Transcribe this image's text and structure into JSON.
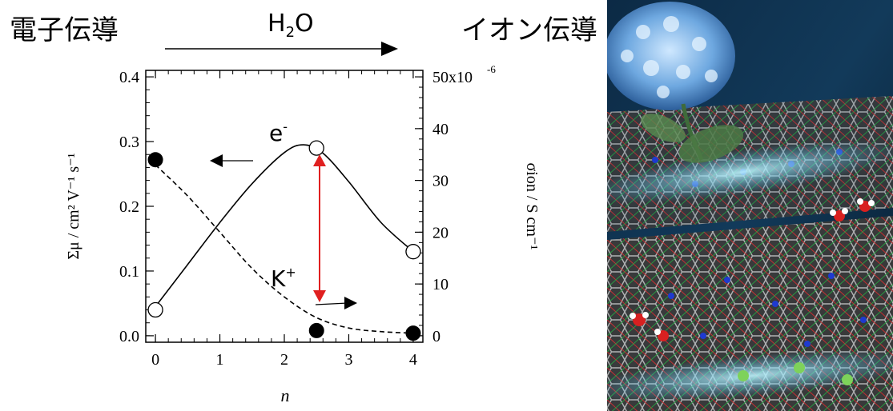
{
  "header": {
    "left": "電子伝導",
    "middle_base": "H",
    "middle_sub": "2",
    "middle_tail": "O",
    "right": "イオン伝導"
  },
  "chart_data": {
    "type": "scatter",
    "xlabel": "n",
    "ylabel_left": "Σμ / cm² V⁻¹ s⁻¹",
    "ylabel_right": "σion / S cm⁻¹",
    "xlim": [
      -0.15,
      4.15
    ],
    "ylim_left": [
      -0.01,
      0.41
    ],
    "ylim_right": [
      -1.25,
      51.25
    ],
    "x_ticks": [
      0,
      1,
      2,
      3,
      4
    ],
    "y_left_ticks": [
      "0.0",
      "0.1",
      "0.2",
      "0.3",
      "0.4"
    ],
    "y_right_ticks": [
      "0",
      "10",
      "20",
      "30",
      "40",
      "50x10"
    ],
    "y_right_top_exponent": "-6",
    "series": [
      {
        "name": "e-",
        "axis": "left",
        "marker": "open-circle",
        "points": [
          [
            0,
            0.04
          ],
          [
            2.5,
            0.29
          ],
          [
            4,
            0.13
          ]
        ],
        "fit_curve": "solid",
        "fit_points": [
          [
            0,
            0.045
          ],
          [
            0.5,
            0.11
          ],
          [
            1,
            0.175
          ],
          [
            1.5,
            0.235
          ],
          [
            2,
            0.283
          ],
          [
            2.3,
            0.295
          ],
          [
            2.6,
            0.282
          ],
          [
            3,
            0.238
          ],
          [
            3.5,
            0.175
          ],
          [
            4,
            0.13
          ]
        ]
      },
      {
        "name": "K+",
        "axis": "right",
        "marker": "filled-circle",
        "points": [
          [
            0,
            34
          ],
          [
            2.5,
            1
          ],
          [
            4,
            0.5
          ]
        ],
        "fit_curve": "dashed",
        "fit_points": [
          [
            0,
            33
          ],
          [
            0.5,
            27
          ],
          [
            1,
            20
          ],
          [
            1.5,
            13
          ],
          [
            2,
            7.5
          ],
          [
            2.5,
            3.5
          ],
          [
            3,
            1.5
          ],
          [
            3.5,
            0.8
          ],
          [
            4,
            0.5
          ]
        ]
      }
    ],
    "annotations": {
      "e_label": "e",
      "e_sup": "-",
      "k_label": "K",
      "k_sup": "+"
    },
    "colors": {
      "arrow": "#e02020",
      "ink": "#000000"
    }
  },
  "artwork": {
    "description_icon": "crystal-structure-illustration"
  }
}
